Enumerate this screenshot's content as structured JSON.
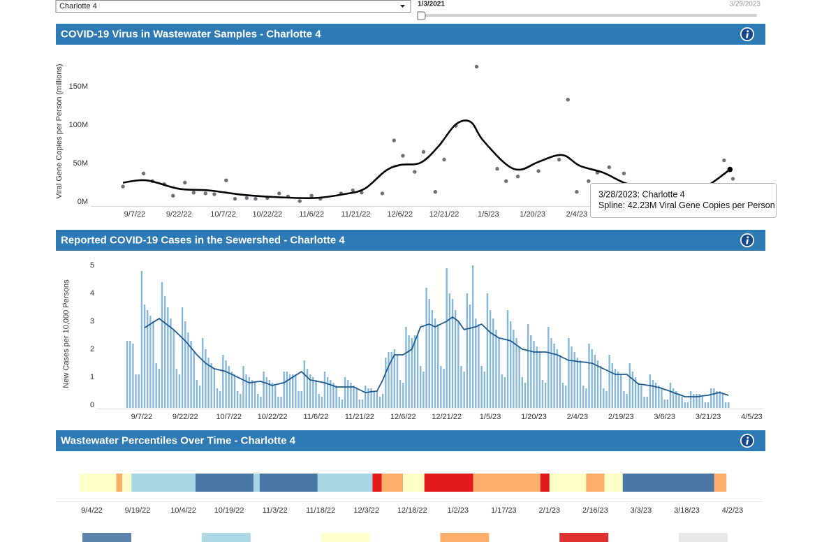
{
  "controls": {
    "location": "Charlotte 4",
    "date_start": "1/3/2021",
    "date_end": "3/29/2023"
  },
  "chart_data": [
    {
      "type": "scatter",
      "title": "COVID-19 Virus in Wastewater Samples - Charlotte 4",
      "y_label": "Viral Gene Copies per Person (millions)",
      "xlim": [
        "8/29/22",
        "3/31/23"
      ],
      "xticks": [
        "9/7/22",
        "9/22/22",
        "10/7/22",
        "10/22/22",
        "11/6/22",
        "11/21/22",
        "12/6/22",
        "12/21/22",
        "1/5/23",
        "1/20/23",
        "2/4/23"
      ],
      "ylim": [
        0,
        180
      ],
      "yticks": [
        {
          "value": 0,
          "label": "0M"
        },
        {
          "value": 50,
          "label": "50M"
        },
        {
          "value": 100,
          "label": "100M"
        },
        {
          "value": 150,
          "label": "150M"
        }
      ],
      "grid": false,
      "series": [
        {
          "type": "scatter",
          "color": "#6f7178",
          "x": [
            "9/3/22",
            "9/10/22",
            "9/13/22",
            "9/17/22",
            "9/20/22",
            "9/24/22",
            "9/27/22",
            "10/1/22",
            "10/4/22",
            "10/8/22",
            "10/11/22",
            "10/15/22",
            "10/18/22",
            "10/22/22",
            "10/26/22",
            "10/29/22",
            "11/2/22",
            "11/6/22",
            "11/9/22",
            "11/16/22",
            "11/20/22",
            "11/23/22",
            "11/30/22",
            "12/4/22",
            "12/7/22",
            "12/11/22",
            "12/14/22",
            "12/18/22",
            "12/21/22",
            "12/25/22",
            "1/1/23",
            "1/8/23",
            "1/11/23",
            "1/15/23",
            "1/22/23",
            "1/29/23",
            "2/1/23",
            "2/4/23",
            "2/8/23",
            "2/11/23",
            "2/15/23",
            "2/20/23",
            "3/26/23",
            "3/29/23"
          ],
          "values": [
            20,
            37,
            27,
            23,
            8,
            25,
            12,
            11,
            10,
            28,
            4,
            5,
            4,
            5,
            11,
            7,
            1,
            8,
            4,
            11,
            15,
            12,
            11,
            80,
            60,
            39,
            65,
            13,
            55,
            99,
            176,
            43,
            27,
            33,
            40,
            55,
            133,
            13,
            27,
            38,
            45,
            37,
            54,
            30
          ]
        },
        {
          "type": "line",
          "color": "#000000",
          "x": [
            "9/3/22",
            "9/11/22",
            "9/22/22",
            "10/2/22",
            "10/14/22",
            "10/26/22",
            "11/7/22",
            "11/17/22",
            "11/24/22",
            "12/1/22",
            "12/6/22",
            "12/13/22",
            "12/19/22",
            "12/25/22",
            "12/30/22",
            "1/3/23",
            "1/11/23",
            "1/16/23",
            "1/22/23",
            "1/30/23",
            "2/5/23",
            "2/13/23",
            "2/20/23",
            "2/27/23",
            "3/8/23",
            "3/18/23",
            "3/22/23",
            "3/28/23"
          ],
          "values": [
            25,
            28,
            17,
            15,
            9,
            6,
            5,
            10,
            17,
            40,
            48,
            51,
            72,
            101,
            104,
            81,
            49,
            42,
            52,
            61,
            47,
            38,
            25,
            18,
            12,
            17,
            25,
            42.23
          ]
        }
      ],
      "tooltip": [
        "3/28/2023: Charlotte 4",
        "Spline: 42.23M Viral Gene Copies per Person"
      ]
    },
    {
      "type": "bar",
      "title": "Reported COVID-19 Cases in the Sewershed - Charlotte 4",
      "y_label": "New Cases per 10,000 Persons",
      "ylim": [
        0,
        5
      ],
      "yticks": [
        0,
        1,
        2,
        3,
        4,
        5
      ],
      "grid": false,
      "categories": [
        null,
        null,
        null,
        null,
        null,
        "9/7/22",
        null,
        null,
        null,
        null,
        null,
        null,
        null,
        null,
        null,
        null,
        null,
        null,
        null,
        null,
        "9/22/22",
        null,
        null,
        null,
        null,
        null,
        null,
        null,
        null,
        null,
        null,
        null,
        null,
        null,
        null,
        "10/7/22",
        null,
        null,
        null,
        null,
        null,
        null,
        null,
        null,
        null,
        null,
        null,
        null,
        null,
        null,
        "10/22/22",
        null,
        null,
        null,
        null,
        null,
        null,
        null,
        null,
        null,
        null,
        null,
        null,
        null,
        null,
        "11/6/22",
        null,
        null,
        null,
        null,
        null,
        null,
        null,
        null,
        null,
        null,
        null,
        null,
        null,
        null,
        "11/21/22",
        null,
        null,
        null,
        null,
        null,
        null,
        null,
        null,
        null,
        null,
        null,
        null,
        null,
        null,
        "12/6/22",
        null,
        null,
        null,
        null,
        null,
        null,
        null,
        null,
        null,
        null,
        null,
        null,
        null,
        null,
        "12/21/22",
        null,
        null,
        null,
        null,
        null,
        null,
        null,
        null,
        null,
        null,
        null,
        null,
        null,
        null,
        "1/5/23",
        null,
        null,
        null,
        null,
        null,
        null,
        null,
        null,
        null,
        null,
        null,
        null,
        null,
        null,
        "1/20/23",
        null,
        null,
        null,
        null,
        null,
        null,
        null,
        null,
        null,
        null,
        null,
        null,
        null,
        null,
        "2/4/23",
        null,
        null,
        null,
        null,
        null,
        null,
        null,
        null,
        null,
        null,
        null,
        null,
        null,
        null,
        "2/19/23",
        null,
        null,
        null,
        null,
        null,
        null,
        null,
        null,
        null,
        null,
        null,
        null,
        null,
        null,
        "3/6/23",
        null,
        null,
        null,
        null,
        null,
        null,
        null,
        null,
        null,
        null,
        null,
        null,
        null,
        null,
        "3/21/23",
        null,
        null,
        null,
        null,
        null,
        null,
        null,
        null,
        null,
        null,
        null,
        null,
        null,
        null,
        "4/5/23"
      ],
      "series": [
        {
          "type": "bar",
          "color": "#86b8dc",
          "values": [
            2.4,
            2.4,
            2.3,
            1.2,
            1.2,
            4.9,
            3.7,
            3.5,
            3.3,
            3.1,
            1.6,
            1.4,
            4.5,
            4.0,
            3.6,
            3.2,
            2.8,
            1.4,
            1.2,
            3.6,
            3.1,
            2.7,
            2.4,
            2.0,
            1.0,
            0.8,
            2.5,
            2.1,
            1.8,
            1.6,
            1.4,
            0.7,
            0.6,
            1.9,
            1.7,
            1.5,
            1.3,
            1.2,
            0.6,
            0.5,
            1.5,
            1.2,
            1.1,
            1.0,
            0.9,
            0.5,
            0.4,
            1.3,
            1.1,
            1.0,
            0.9,
            0.8,
            0.4,
            0.4,
            1.3,
            1.3,
            1.2,
            1.2,
            1.2,
            0.6,
            0.6,
            1.7,
            1.4,
            1.2,
            1.1,
            1.0,
            0.5,
            0.4,
            1.3,
            1.1,
            1.0,
            0.9,
            0.8,
            0.4,
            0.3,
            1.1,
            1.0,
            0.9,
            0.8,
            0.7,
            0.3,
            0.3,
            0.8,
            0.7,
            0.7,
            0.6,
            0.6,
            0.4,
            0.5,
            1.8,
            2.0,
            2.0,
            2.1,
            1.9,
            1.0,
            0.9,
            2.9,
            2.6,
            2.5,
            2.6,
            2.6,
            1.5,
            1.3,
            4.3,
            3.9,
            3.5,
            3.2,
            3.0,
            1.5,
            1.4,
            5.0,
            4.1,
            3.9,
            3.5,
            3.1,
            1.5,
            1.3,
            4.1,
            3.7,
            5.1,
            3.2,
            3.0,
            1.5,
            1.3,
            4.1,
            3.5,
            3.2,
            2.8,
            2.5,
            1.2,
            1.1,
            3.5,
            3.1,
            2.8,
            2.5,
            2.2,
            1.1,
            0.9,
            3.0,
            2.6,
            2.4,
            2.2,
            2.0,
            1.0,
            0.9,
            2.9,
            2.5,
            2.3,
            2.1,
            1.9,
            0.9,
            0.8,
            2.5,
            2.2,
            2.0,
            1.8,
            1.7,
            0.8,
            0.7,
            2.3,
            2.1,
            1.9,
            1.7,
            1.5,
            0.7,
            0.6,
            1.9,
            1.6,
            1.4,
            1.3,
            1.2,
            0.6,
            0.5,
            1.6,
            1.3,
            1.1,
            0.9,
            0.8,
            0.4,
            0.4,
            1.2,
            1.0,
            0.9,
            0.8,
            0.7,
            0.3,
            0.3,
            0.9,
            0.7,
            0.6,
            0.5,
            0.4,
            0.2,
            0.2,
            0.6,
            0.5,
            0.5,
            0.5,
            0.4,
            0.2,
            0.2,
            0.7,
            0.7,
            0.6,
            0.6,
            0.5,
            0.2,
            0.2,
            null,
            null,
            null,
            null,
            null,
            null,
            null,
            null
          ]
        },
        {
          "type": "line",
          "color": "#1c5a8f",
          "values": [
            null,
            null,
            null,
            null,
            null,
            null,
            2.87,
            2.93,
            3.0,
            3.07,
            3.13,
            3.2,
            3.12,
            3.04,
            2.96,
            2.88,
            2.8,
            2.7,
            2.6,
            2.5,
            2.4,
            2.28,
            2.15,
            2.03,
            1.9,
            1.8,
            1.7,
            1.6,
            1.53,
            1.47,
            1.4,
            1.38,
            1.35,
            1.33,
            1.3,
            1.25,
            1.2,
            1.15,
            1.1,
            1.05,
            1.0,
            0.95,
            0.9,
            0.91,
            0.93,
            0.94,
            0.95,
            0.91,
            0.88,
            0.84,
            0.8,
            0.83,
            0.85,
            0.88,
            0.9,
            0.97,
            1.03,
            1.1,
            1.17,
            1.23,
            1.3,
            1.2,
            1.1,
            1.0,
            0.98,
            0.96,
            0.94,
            0.92,
            0.9,
            0.86,
            0.83,
            0.79,
            0.75,
            0.75,
            0.75,
            0.75,
            0.75,
            0.75,
            0.75,
            0.7,
            0.65,
            0.6,
            0.55,
            0.56,
            0.58,
            0.59,
            0.6,
            0.8,
            1.0,
            1.25,
            1.5,
            1.7,
            1.9,
            1.9,
            1.9,
            1.9,
            1.97,
            2.03,
            2.1,
            2.37,
            2.63,
            2.9,
            2.93,
            2.97,
            3.0,
            2.95,
            2.9,
            2.95,
            3.0,
            3.05,
            3.1,
            3.18,
            3.25,
            3.18,
            3.1,
            2.95,
            2.8,
            2.83,
            2.85,
            2.88,
            2.9,
            2.95,
            3.0,
            2.9,
            2.8,
            2.7,
            2.63,
            2.57,
            2.5,
            2.48,
            2.45,
            2.43,
            2.4,
            2.33,
            2.25,
            2.18,
            2.1,
            2.08,
            2.05,
            2.03,
            2.0,
            2.0,
            2.0,
            2.0,
            2.0,
            1.98,
            1.95,
            1.93,
            1.9,
            1.85,
            1.8,
            1.75,
            1.7,
            1.69,
            1.68,
            1.66,
            1.65,
            1.64,
            1.63,
            1.61,
            1.6,
            1.55,
            1.5,
            1.45,
            1.4,
            1.35,
            1.3,
            1.25,
            1.2,
            1.2,
            1.2,
            1.2,
            1.2,
            1.11,
            1.03,
            0.94,
            0.85,
            0.84,
            0.83,
            0.81,
            0.8,
            0.78,
            0.75,
            0.73,
            0.7,
            0.66,
            0.63,
            0.59,
            0.55,
            0.51,
            0.48,
            0.44,
            0.4,
            0.4,
            0.4,
            0.4,
            0.4,
            0.41,
            0.43,
            0.44,
            0.45,
            0.48,
            0.5,
            0.53,
            0.55,
            0.52,
            0.48,
            0.45,
            null,
            null,
            null,
            null,
            null,
            null,
            null,
            null
          ]
        }
      ]
    },
    {
      "type": "timeline",
      "title": "Wastewater Percentiles Over Time - Charlotte 4",
      "xlim": [
        "8/31/22",
        "4/2/23"
      ],
      "xticks": [
        "9/4/22",
        "9/19/22",
        "10/4/22",
        "10/19/22",
        "11/3/22",
        "11/18/22",
        "12/3/22",
        "12/18/22",
        "1/2/23",
        "1/17/23",
        "2/1/23",
        "2/16/23",
        "3/3/23",
        "3/18/23",
        "4/2/23"
      ],
      "segments": [
        {
          "start": "8/31/22",
          "end": "9/12/22",
          "color": "#ffffc8"
        },
        {
          "start": "9/12/22",
          "end": "9/14/22",
          "color": "#fdae6b"
        },
        {
          "start": "9/14/22",
          "end": "9/17/22",
          "color": "#ffffc8"
        },
        {
          "start": "9/17/22",
          "end": "10/8/22",
          "color": "#a9d6e5"
        },
        {
          "start": "10/8/22",
          "end": "10/27/22",
          "color": "#4a78a4"
        },
        {
          "start": "10/27/22",
          "end": "10/29/22",
          "color": "#a9d6e5"
        },
        {
          "start": "10/29/22",
          "end": "11/17/22",
          "color": "#4a78a4"
        },
        {
          "start": "11/17/22",
          "end": "12/5/22",
          "color": "#a9d6e5"
        },
        {
          "start": "12/5/22",
          "end": "12/8/22",
          "color": "#e31a1c"
        },
        {
          "start": "12/8/22",
          "end": "12/15/22",
          "color": "#fdae6b"
        },
        {
          "start": "12/15/22",
          "end": "12/22/22",
          "color": "#ffffc8"
        },
        {
          "start": "12/22/22",
          "end": "1/7/23",
          "color": "#e31a1c"
        },
        {
          "start": "1/7/23",
          "end": "1/29/23",
          "color": "#fdae6b"
        },
        {
          "start": "1/29/23",
          "end": "2/1/23",
          "color": "#e31a1c"
        },
        {
          "start": "2/1/23",
          "end": "2/13/23",
          "color": "#ffffc8"
        },
        {
          "start": "2/13/23",
          "end": "2/19/23",
          "color": "#fdae6b"
        },
        {
          "start": "2/19/23",
          "end": "2/25/23",
          "color": "#ffffc8"
        },
        {
          "start": "2/25/23",
          "end": "3/27/23",
          "color": "#4a78a4"
        },
        {
          "start": "3/27/23",
          "end": "3/31/23",
          "color": "#fdae6b"
        }
      ],
      "legend_colors": [
        "#5b84ab",
        "#add8e6",
        "#ffffcc",
        "#fdae6b",
        "#e03131",
        "#e8e8e8"
      ]
    }
  ]
}
